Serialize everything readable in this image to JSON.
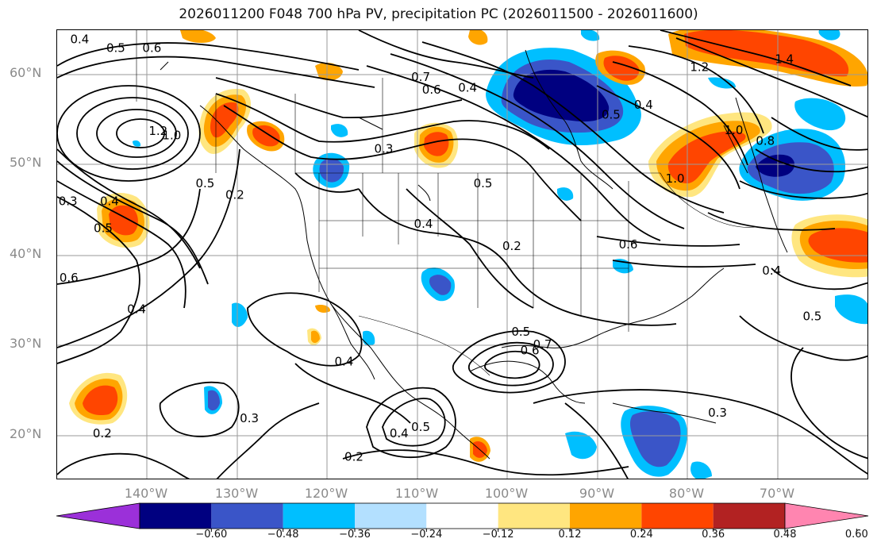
{
  "title": "2026011200 F048 700 hPa PV, precipitation PC (2026011500 - 2026011600)",
  "lat_labels": [
    "60°N",
    "50°N",
    "40°N",
    "30°N",
    "20°N"
  ],
  "lon_labels": [
    "140°W",
    "130°W",
    "120°W",
    "110°W",
    "100°W",
    "90°W",
    "80°W",
    "70°W"
  ],
  "colorbar": {
    "colors": [
      "#9b30d9",
      "#000080",
      "#3a55c8",
      "#00bfff",
      "#b3e0ff",
      "#ffffff",
      "#ffe680",
      "#ffa500",
      "#ff4500",
      "#b22222",
      "#ff85b0"
    ],
    "ticks": [
      "−0.60",
      "−0.48",
      "−0.36",
      "−0.24",
      "−0.12",
      "0.12",
      "0.24",
      "0.36",
      "0.48",
      "0.60"
    ]
  },
  "contour_labels": [
    {
      "text": "0.4",
      "lon": -147.5,
      "lat": 64
    },
    {
      "text": "0.5",
      "lon": -143.5,
      "lat": 63
    },
    {
      "text": "0.6",
      "lon": -139.5,
      "lat": 63
    },
    {
      "text": "1.2",
      "lon": -138.8,
      "lat": 53.8
    },
    {
      "text": "1.0",
      "lon": -137.3,
      "lat": 53.3
    },
    {
      "text": "0.5",
      "lon": -133.6,
      "lat": 48
    },
    {
      "text": "0.2",
      "lon": -130.3,
      "lat": 46.7
    },
    {
      "text": "0.3",
      "lon": -148.8,
      "lat": 46
    },
    {
      "text": "0.4",
      "lon": -144.2,
      "lat": 46
    },
    {
      "text": "0.5",
      "lon": -144.9,
      "lat": 43
    },
    {
      "text": "0.6",
      "lon": -148.7,
      "lat": 37.5
    },
    {
      "text": "0.4",
      "lon": -141.2,
      "lat": 34
    },
    {
      "text": "0.7",
      "lon": -109.7,
      "lat": 59.8
    },
    {
      "text": "0.6",
      "lon": -108.5,
      "lat": 58.4
    },
    {
      "text": "0.3",
      "lon": -113.8,
      "lat": 51.8
    },
    {
      "text": "0.4",
      "lon": -104.5,
      "lat": 58.6
    },
    {
      "text": "0.5",
      "lon": -88.6,
      "lat": 55.6
    },
    {
      "text": "0.4",
      "lon": -85,
      "lat": 56.7
    },
    {
      "text": "1.0",
      "lon": -81.5,
      "lat": 48.5
    },
    {
      "text": "0.4",
      "lon": -109.4,
      "lat": 43.5
    },
    {
      "text": "0.5",
      "lon": -102.8,
      "lat": 48
    },
    {
      "text": "0.2",
      "lon": -99.6,
      "lat": 41
    },
    {
      "text": "0.6",
      "lon": -86.7,
      "lat": 41.2
    },
    {
      "text": "0.5",
      "lon": -98.6,
      "lat": 31.5
    },
    {
      "text": "0.7",
      "lon": -96.2,
      "lat": 30.1
    },
    {
      "text": "0.6",
      "lon": -97.6,
      "lat": 29.4
    },
    {
      "text": "0.4",
      "lon": -118.2,
      "lat": 28.2
    },
    {
      "text": "0.3",
      "lon": -128.7,
      "lat": 21.9
    },
    {
      "text": "0.5",
      "lon": -109.7,
      "lat": 20.9
    },
    {
      "text": "0.4",
      "lon": -112.1,
      "lat": 20.2
    },
    {
      "text": "0.2",
      "lon": -117.1,
      "lat": 17.6
    },
    {
      "text": "0.2",
      "lon": -145,
      "lat": 20.2
    },
    {
      "text": "1.0",
      "lon": -75,
      "lat": 53.9
    },
    {
      "text": "0.8",
      "lon": -71.5,
      "lat": 52.7
    },
    {
      "text": "1.2",
      "lon": -78.8,
      "lat": 60.9
    },
    {
      "text": "1.4",
      "lon": -69.4,
      "lat": 61.8
    },
    {
      "text": "0.4",
      "lon": -70.8,
      "lat": 38.3
    },
    {
      "text": "0.5",
      "lon": -66.3,
      "lat": 33.2
    },
    {
      "text": "0.3",
      "lon": -76.8,
      "lat": 22.5
    }
  ]
}
